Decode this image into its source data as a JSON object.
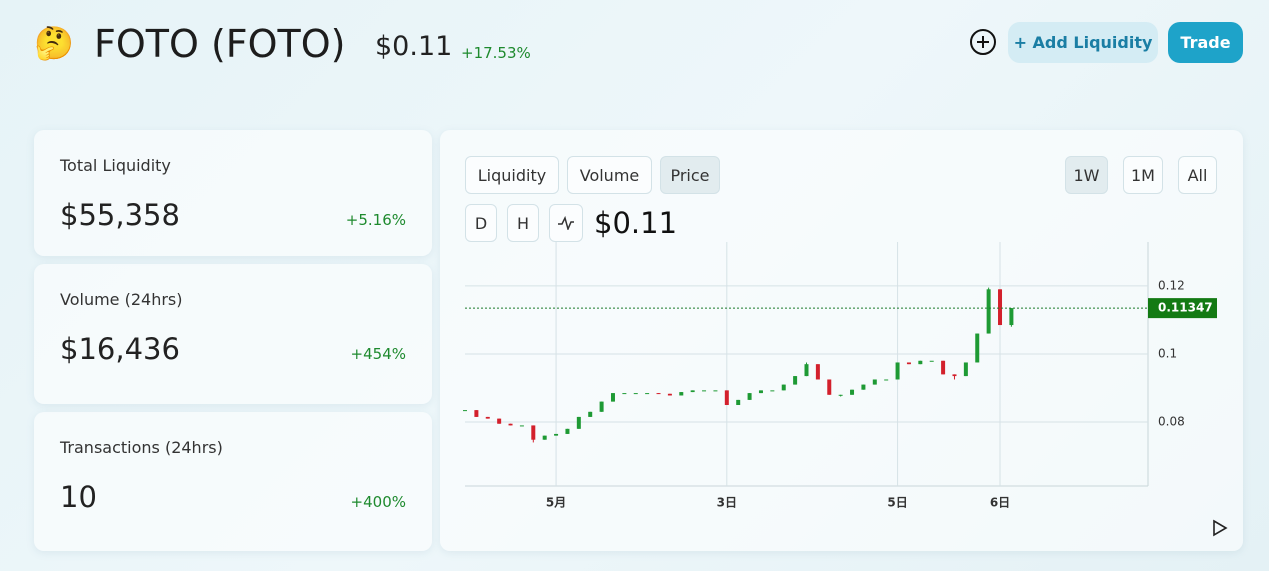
{
  "header": {
    "icon": "🤔",
    "name": "FOTO (FOTO)",
    "price": "$0.11",
    "change": "+17.53%",
    "buttons": [
      "+ Add Liquidity",
      "Trade"
    ]
  },
  "stats": [
    {
      "label": "Total Liquidity",
      "value": "$55,358",
      "change": "+5.16%"
    },
    {
      "label": "Volume (24hrs)",
      "value": "$16,436",
      "change": "+454%"
    },
    {
      "label": "Transactions (24hrs)",
      "value": "10",
      "change": "+400%"
    }
  ],
  "panel": {
    "tabs": [
      "Liquidity",
      "Volume",
      "Price"
    ],
    "ranges": [
      "1W",
      "1M",
      "All"
    ],
    "intervals": [
      "D",
      "H"
    ],
    "current_price": "$0.11"
  },
  "chart_data": {
    "type": "candlestick",
    "categories": [
      null,
      null,
      null,
      null,
      null,
      null,
      null,
      null,
      "5月",
      null,
      null,
      null,
      null,
      null,
      null,
      null,
      null,
      null,
      null,
      null,
      null,
      null,
      null,
      "3日",
      null,
      null,
      null,
      null,
      null,
      null,
      null,
      null,
      null,
      null,
      null,
      null,
      null,
      null,
      "5日",
      null,
      null,
      null,
      null,
      null,
      null,
      null,
      null,
      "6日",
      null
    ],
    "open": [
      0.0835,
      0.0835,
      0.0815,
      0.081,
      0.0795,
      0.079,
      0.079,
      0.0748,
      0.076,
      0.0765,
      0.078,
      0.0815,
      0.083,
      0.086,
      0.0885,
      0.0885,
      0.0885,
      0.0885,
      0.0883,
      0.0878,
      0.0888,
      0.0893,
      0.0893,
      0.0893,
      0.085,
      0.0865,
      0.0885,
      0.0893,
      0.0893,
      0.091,
      0.0935,
      0.097,
      0.0925,
      0.088,
      0.088,
      0.0895,
      0.091,
      0.0925,
      0.0925,
      0.0975,
      0.097,
      0.098,
      0.098,
      0.094,
      0.0935,
      0.0975,
      0.106,
      0.119,
      0.1085
    ],
    "high": [
      0.0835,
      0.0835,
      0.0815,
      0.081,
      0.0795,
      0.079,
      0.079,
      0.076,
      0.0765,
      0.078,
      0.0815,
      0.083,
      0.086,
      0.0885,
      0.0885,
      0.0885,
      0.0885,
      0.0885,
      0.0883,
      0.0888,
      0.0893,
      0.0893,
      0.0893,
      0.0893,
      0.0865,
      0.0885,
      0.0893,
      0.0893,
      0.091,
      0.0935,
      0.0975,
      0.097,
      0.0925,
      0.088,
      0.0895,
      0.091,
      0.0925,
      0.0925,
      0.0975,
      0.0975,
      0.098,
      0.098,
      0.098,
      0.094,
      0.0975,
      0.106,
      0.1195,
      0.119,
      0.11347
    ],
    "low": [
      0.0835,
      0.0815,
      0.081,
      0.0795,
      0.079,
      0.079,
      0.074,
      0.0748,
      0.076,
      0.0765,
      0.078,
      0.0815,
      0.083,
      0.086,
      0.0885,
      0.0885,
      0.0885,
      0.0883,
      0.0878,
      0.0878,
      0.0888,
      0.0893,
      0.0893,
      0.085,
      0.085,
      0.0865,
      0.0885,
      0.0893,
      0.0893,
      0.091,
      0.0935,
      0.0925,
      0.088,
      0.0875,
      0.088,
      0.0895,
      0.091,
      0.0925,
      0.0925,
      0.097,
      0.097,
      0.098,
      0.094,
      0.0925,
      0.0935,
      0.0975,
      0.106,
      0.1085,
      0.108
    ],
    "close": [
      0.0835,
      0.0815,
      0.081,
      0.0795,
      0.079,
      0.079,
      0.0748,
      0.076,
      0.0765,
      0.078,
      0.0815,
      0.083,
      0.086,
      0.0885,
      0.0885,
      0.0885,
      0.0885,
      0.0883,
      0.0878,
      0.0888,
      0.0893,
      0.0893,
      0.0893,
      0.085,
      0.0865,
      0.0885,
      0.0893,
      0.0893,
      0.091,
      0.0935,
      0.097,
      0.0925,
      0.088,
      0.088,
      0.0895,
      0.091,
      0.0925,
      0.0925,
      0.0975,
      0.097,
      0.098,
      0.098,
      0.094,
      0.0935,
      0.0975,
      0.106,
      0.119,
      0.1085,
      0.11347
    ],
    "up_color": "#1e9a34",
    "down_color": "#d3202c",
    "ylim": [
      0.0612,
      0.1329
    ],
    "yticks": [
      0.08,
      0.1,
      0.12
    ],
    "grid": true,
    "last_price": 0.11347
  }
}
